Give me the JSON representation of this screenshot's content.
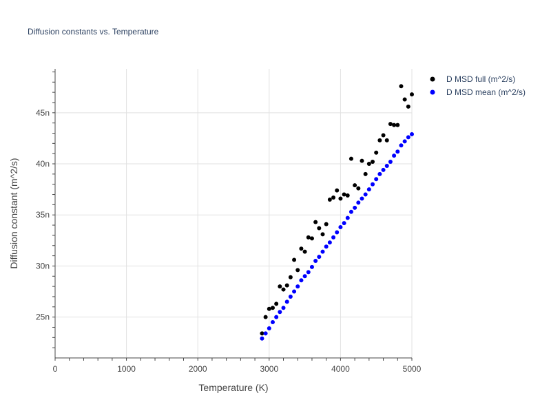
{
  "chart_data": {
    "type": "scatter",
    "title": "Diffusion constants vs. Temperature",
    "xlabel": "Temperature (K)",
    "ylabel": "Diffusion constant (m^2/s)",
    "xlim": [
      0,
      5000
    ],
    "ylim": [
      21,
      49.3
    ],
    "x_ticks": [
      0,
      1000,
      2000,
      3000,
      4000,
      5000
    ],
    "x_tick_labels": [
      "0",
      "1000",
      "2000",
      "3000",
      "4000",
      "5000"
    ],
    "y_ticks": [
      25,
      30,
      35,
      40,
      45
    ],
    "y_tick_labels": [
      "25n",
      "30n",
      "35n",
      "40n",
      "45n"
    ],
    "grid": true,
    "legend_position": "top-right",
    "series": [
      {
        "name": "D MSD full (m^2/s)",
        "color": "#000000",
        "x": [
          2900,
          2950,
          3000,
          3050,
          3100,
          3150,
          3200,
          3250,
          3300,
          3350,
          3400,
          3450,
          3500,
          3550,
          3600,
          3650,
          3700,
          3750,
          3800,
          3850,
          3900,
          3950,
          4000,
          4050,
          4100,
          4150,
          4200,
          4250,
          4300,
          4350,
          4400,
          4450,
          4500,
          4550,
          4600,
          4650,
          4700,
          4750,
          4800,
          4850,
          4900,
          4950,
          5000
        ],
        "y": [
          23.4,
          25.0,
          25.8,
          25.9,
          26.3,
          28.0,
          27.7,
          28.1,
          28.9,
          30.6,
          29.6,
          31.7,
          31.4,
          32.8,
          32.7,
          34.3,
          33.7,
          33.1,
          34.1,
          36.5,
          36.7,
          37.4,
          36.6,
          37.0,
          36.9,
          40.5,
          37.9,
          37.6,
          40.3,
          39.0,
          40.0,
          40.2,
          41.1,
          42.3,
          42.8,
          42.3,
          43.9,
          43.8,
          43.8,
          47.6,
          46.3,
          45.6,
          46.8
        ]
      },
      {
        "name": "D MSD mean (m^2/s)",
        "color": "#0000ff",
        "x": [
          2900,
          2950,
          3000,
          3050,
          3100,
          3150,
          3200,
          3250,
          3300,
          3350,
          3400,
          3450,
          3500,
          3550,
          3600,
          3650,
          3700,
          3750,
          3800,
          3850,
          3900,
          3950,
          4000,
          4050,
          4100,
          4150,
          4200,
          4250,
          4300,
          4350,
          4400,
          4450,
          4500,
          4550,
          4600,
          4650,
          4700,
          4750,
          4800,
          4850,
          4900,
          4950,
          5000
        ],
        "y": [
          22.9,
          23.4,
          23.9,
          24.5,
          25.0,
          25.5,
          25.9,
          26.5,
          27.0,
          27.5,
          28.0,
          28.6,
          29.0,
          29.4,
          29.9,
          30.5,
          30.9,
          31.4,
          31.9,
          32.3,
          32.8,
          33.3,
          33.8,
          34.2,
          34.7,
          35.3,
          35.7,
          36.2,
          36.6,
          37.0,
          37.5,
          38.0,
          38.5,
          39.0,
          39.4,
          39.8,
          40.2,
          40.8,
          41.2,
          41.8,
          42.2,
          42.6,
          42.9
        ]
      }
    ]
  }
}
